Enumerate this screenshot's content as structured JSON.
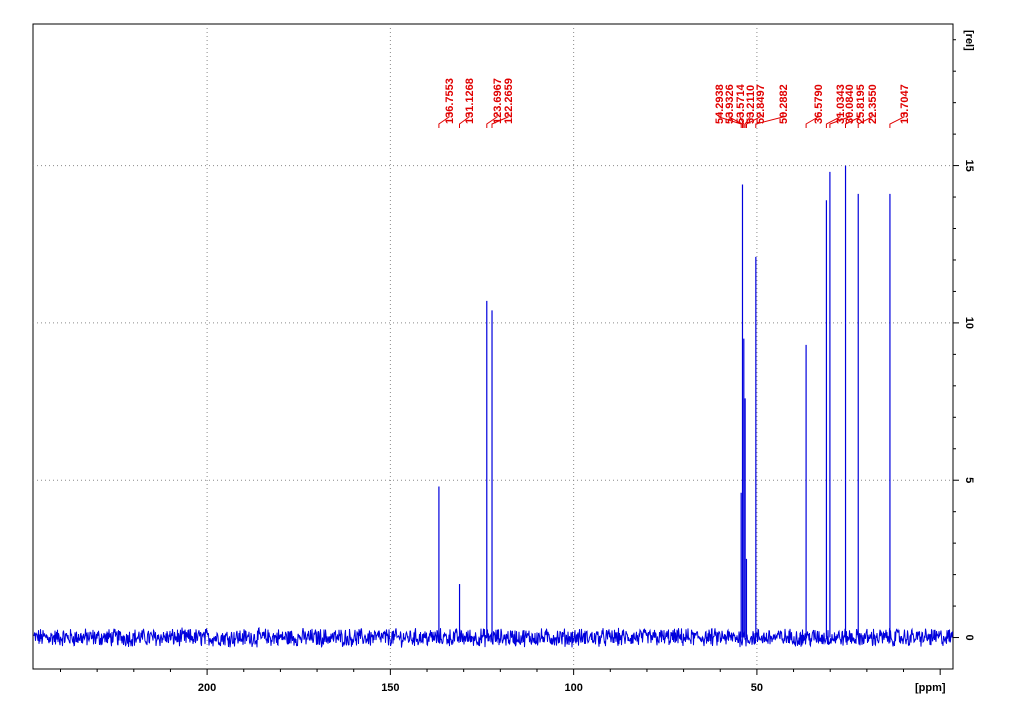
{
  "chart_data": {
    "type": "line",
    "title": "",
    "xlabel": "[ppm]",
    "ylabel": "[rel]",
    "x_reversed": true,
    "xlim": [
      247.5,
      -3.5
    ],
    "ylim": [
      -1.0,
      19.5
    ],
    "x_ticks": [
      200,
      150,
      100,
      50
    ],
    "y_ticks": [
      0,
      5,
      10,
      15
    ],
    "grid": true,
    "series": [
      {
        "color": "#0000dd",
        "noise_baseline": 0,
        "noise_amplitude": 0.25,
        "peaks": [
          {
            "ppm": 136.7553,
            "height": 4.8
          },
          {
            "ppm": 131.1268,
            "height": 1.7
          },
          {
            "ppm": 123.6967,
            "height": 10.7
          },
          {
            "ppm": 122.2659,
            "height": 10.4
          },
          {
            "ppm": 54.2938,
            "height": 4.6
          },
          {
            "ppm": 53.9326,
            "height": 14.4
          },
          {
            "ppm": 53.5714,
            "height": 9.5
          },
          {
            "ppm": 53.211,
            "height": 7.6
          },
          {
            "ppm": 52.8497,
            "height": 2.5
          },
          {
            "ppm": 50.2882,
            "height": 12.1
          },
          {
            "ppm": 36.579,
            "height": 9.3
          },
          {
            "ppm": 31.0343,
            "height": 13.9
          },
          {
            "ppm": 30.084,
            "height": 14.8
          },
          {
            "ppm": 25.8195,
            "height": 15.0
          },
          {
            "ppm": 22.355,
            "height": 14.1
          },
          {
            "ppm": 13.7047,
            "height": 14.1
          }
        ]
      }
    ],
    "peak_labels": [
      "136.7553",
      "131.1268",
      "123.6967",
      "122.2659",
      "54.2938",
      "53.9326",
      "53.5714",
      "53.2110",
      "52.8497",
      "50.2882",
      "36.5790",
      "31.0343",
      "30.0840",
      "25.8195",
      "22.3550",
      "13.7047"
    ],
    "peak_label_color": "#e00000"
  }
}
